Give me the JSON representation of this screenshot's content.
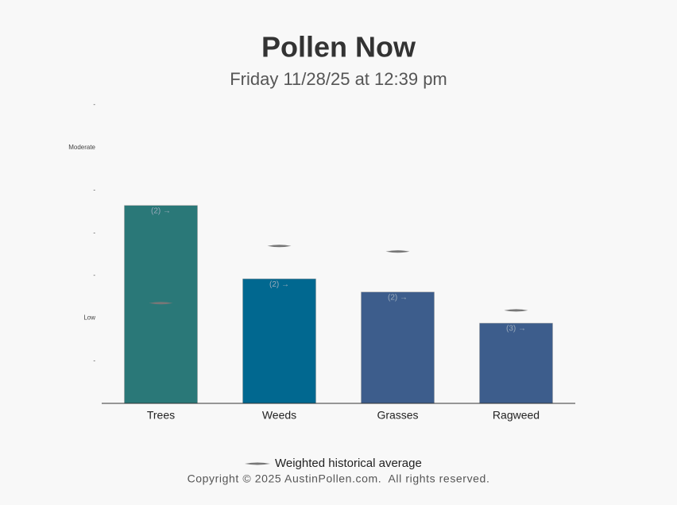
{
  "chart_data": {
    "type": "bar",
    "title": "Pollen Now",
    "subtitle": "Friday 11/28/25 at 12:39 pm",
    "categories": [
      "Trees",
      "Weeds",
      "Grasses",
      "Ragweed"
    ],
    "values": [
      4.64,
      2.92,
      2.61,
      1.88
    ],
    "colors": [
      "#2a7878",
      "#016890",
      "#3d5d8c",
      "#3d5d8c"
    ],
    "bar_annotations": [
      "(2) →",
      "(2) →",
      "(2) →",
      "(3) →"
    ],
    "reference_series": {
      "name": "Weighted historical average",
      "color": "#777777",
      "values": [
        2.35,
        3.69,
        3.56,
        2.18
      ]
    },
    "ylim": [
      0,
      7
    ],
    "yticks": [
      {
        "value": 1,
        "label": "-"
      },
      {
        "value": 2,
        "label": "Low"
      },
      {
        "value": 3,
        "label": "-"
      },
      {
        "value": 4,
        "label": "-"
      },
      {
        "value": 5,
        "label": "-"
      },
      {
        "value": 6,
        "label": "Moderate"
      },
      {
        "value": 7,
        "label": "-"
      }
    ],
    "footer": "Copyright © 2025 AustinPollen.com.  All rights reserved."
  }
}
